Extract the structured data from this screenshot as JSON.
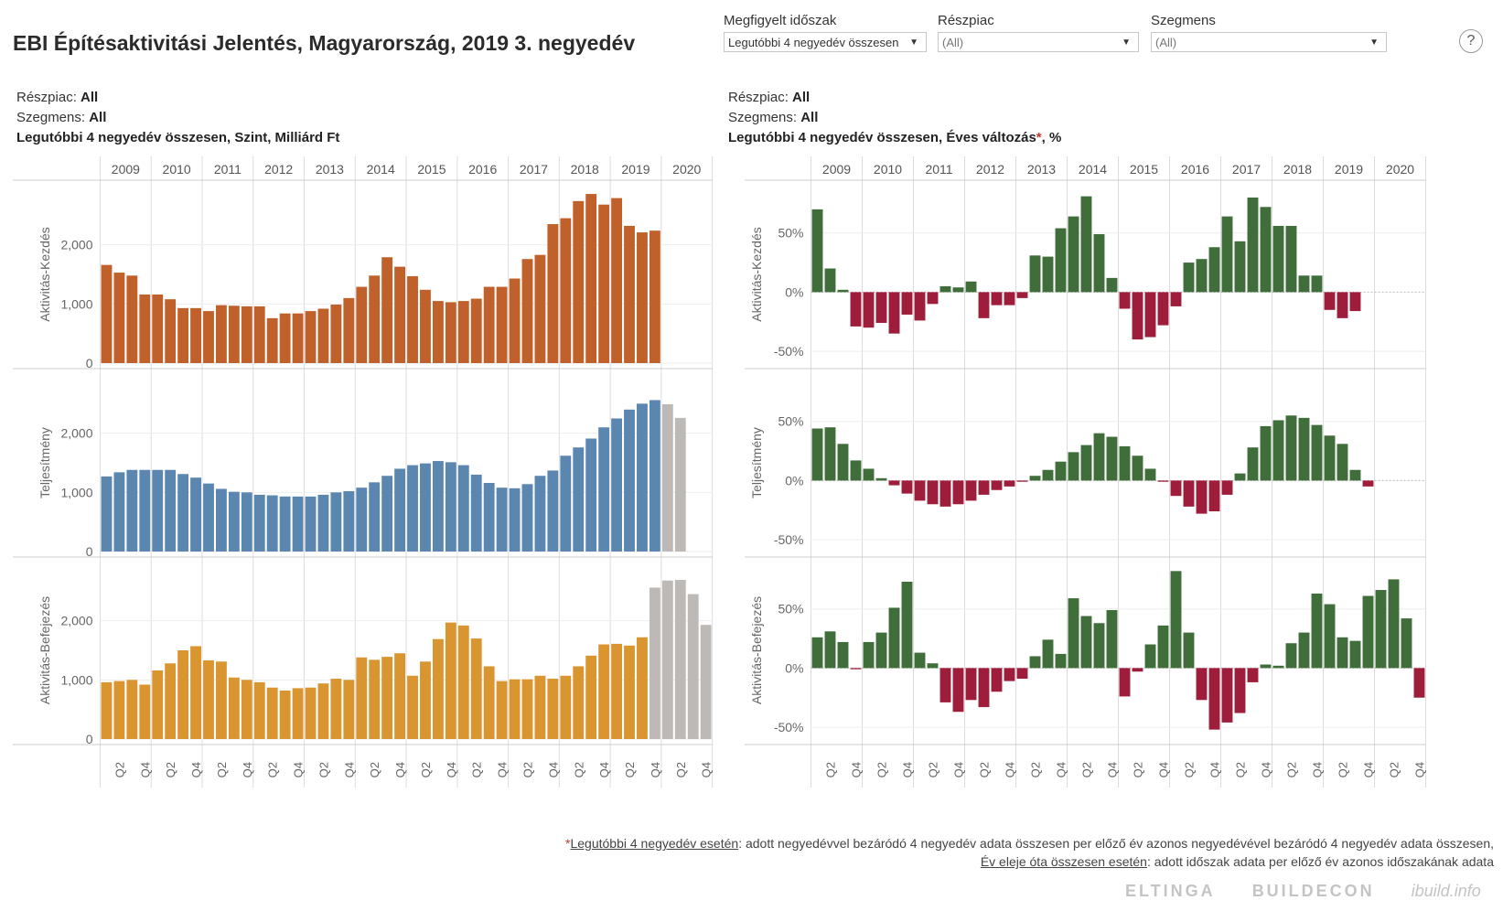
{
  "title": "EBI Építésaktivitási Jelentés, Magyarország, 2019 3. negyedév",
  "filters": [
    {
      "label": "Megfigyelt időszak",
      "value": "Legutóbbi 4 negyedév összesen"
    },
    {
      "label": "Részpiac",
      "value": "(All)"
    },
    {
      "label": "Szegmens",
      "value": "(All)"
    }
  ],
  "help": "?",
  "left_header": {
    "reszpiac_label": "Részpiac:",
    "reszpiac_value": "All",
    "szegmens_label": "Szegmens:",
    "szegmens_value": "All",
    "measure": "Legutóbbi 4 negyedév összesen, Szint, Milliárd Ft"
  },
  "right_header": {
    "reszpiac_label": "Részpiac:",
    "reszpiac_value": "All",
    "szegmens_label": "Szegmens:",
    "szegmens_value": "All",
    "measure_pre": "Legutóbbi 4 negyedév összesen, Éves változás",
    "measure_star": "*",
    "measure_post": ", %"
  },
  "footnote": {
    "star": "*",
    "line1_link": "Legutóbbi 4 negyedév esetén",
    "line1_text": ": adott negyedévvel bezáródó 4 negyedév adata összesen per előző év azonos negyedévével bezáródó 4 negyedév adata összesen,",
    "line2_link": "Év eleje óta összesen esetén",
    "line2_text": ": adott időszak adata per előző év azonos időszakának adata"
  },
  "logos": [
    "ELTINGA",
    "BUILDECON",
    "ibuild.info"
  ],
  "colors": {
    "kezdes": "#c0612b",
    "teljesitmeny": "#5b86b0",
    "befejezes": "#d99530",
    "forecast": "#bdb9b6",
    "positive": "#3f6e3a",
    "negative": "#9e1d3a"
  },
  "chart_data": [
    {
      "type": "bar",
      "title": "Legutóbbi 4 negyedév összesen, Szint, Milliárd Ft",
      "years": [
        "2009",
        "2010",
        "2011",
        "2012",
        "2013",
        "2014",
        "2015",
        "2016",
        "2017",
        "2018",
        "2019",
        "2020"
      ],
      "quarter_ticks": [
        "Q2",
        "Q4"
      ],
      "panels": [
        {
          "name": "Aktivitás-Kezdés",
          "yticks": [
            "0",
            "1,000",
            "2,000"
          ],
          "ylim": [
            0,
            3000
          ],
          "values": [
            1660,
            1530,
            1480,
            1160,
            1160,
            1080,
            930,
            930,
            880,
            980,
            970,
            960,
            960,
            760,
            840,
            840,
            880,
            920,
            990,
            1100,
            1290,
            1480,
            1790,
            1630,
            1470,
            1240,
            1050,
            1030,
            1050,
            1090,
            1290,
            1290,
            1430,
            1760,
            1830,
            2350,
            2450,
            2740,
            2860,
            2680,
            2790,
            2320,
            2210,
            2240,
            null,
            null,
            null,
            null
          ],
          "forecast_values": []
        },
        {
          "name": "Teljesítmény",
          "yticks": [
            "0",
            "1,000",
            "2,000"
          ],
          "ylim": [
            0,
            3000
          ],
          "values": [
            1270,
            1340,
            1380,
            1380,
            1380,
            1380,
            1310,
            1250,
            1150,
            1060,
            1010,
            1000,
            960,
            950,
            930,
            930,
            930,
            960,
            1000,
            1020,
            1080,
            1170,
            1280,
            1400,
            1460,
            1490,
            1530,
            1510,
            1460,
            1300,
            1160,
            1080,
            1070,
            1140,
            1280,
            1370,
            1620,
            1760,
            1910,
            2100,
            2250,
            2400,
            2500,
            2560
          ],
          "forecast_values": [
            2490,
            2260
          ]
        },
        {
          "name": "Aktivitás-Befejezés",
          "yticks": [
            "0",
            "1,000",
            "2,000"
          ],
          "ylim": [
            0,
            3000
          ],
          "values": [
            960,
            980,
            1000,
            920,
            1160,
            1280,
            1500,
            1570,
            1330,
            1310,
            1040,
            1000,
            960,
            870,
            820,
            860,
            870,
            940,
            1020,
            1000,
            1380,
            1340,
            1390,
            1450,
            1070,
            1310,
            1690,
            1970,
            1920,
            1700,
            1230,
            980,
            1010,
            1010,
            1070,
            1020,
            1070,
            1230,
            1410,
            1600,
            1610,
            1580,
            1720
          ],
          "forecast_values": [
            2560,
            2680,
            2690,
            2450,
            1930
          ]
        }
      ]
    },
    {
      "type": "bar",
      "title": "Legutóbbi 4 negyedév összesen, Éves változás*, %",
      "years": [
        "2009",
        "2010",
        "2011",
        "2012",
        "2013",
        "2014",
        "2015",
        "2016",
        "2017",
        "2018",
        "2019",
        "2020"
      ],
      "quarter_ticks": [
        "Q2",
        "Q4"
      ],
      "panels": [
        {
          "name": "Aktivitás-Kezdés",
          "yticks": [
            "-50%",
            "0%",
            "50%"
          ],
          "ylim": [
            -60,
            90
          ],
          "values": [
            70,
            20,
            2,
            -29,
            -30,
            -26,
            -35,
            -19,
            -24,
            -10,
            5,
            4,
            9,
            -22,
            -11,
            -11,
            -5,
            31,
            30,
            54,
            64,
            81,
            49,
            12,
            -14,
            -40,
            -38,
            -28,
            -12,
            25,
            28,
            38,
            64,
            43,
            80,
            72,
            56,
            56,
            14,
            14,
            -15,
            -22,
            -16
          ]
        },
        {
          "name": "Teljesítmény",
          "yticks": [
            "-50%",
            "0%",
            "50%"
          ],
          "ylim": [
            -60,
            90
          ],
          "values": [
            44,
            45,
            31,
            17,
            10,
            2,
            -4,
            -11,
            -17,
            -20,
            -22,
            -20,
            -17,
            -12,
            -8,
            -5,
            -1,
            4,
            9,
            16,
            24,
            30,
            40,
            37,
            29,
            21,
            10,
            -1,
            -13,
            -22,
            -28,
            -26,
            -12,
            6,
            28,
            46,
            51,
            55,
            53,
            47,
            38,
            31,
            9,
            -5
          ]
        },
        {
          "name": "Aktivitás-Befejezés",
          "yticks": [
            "-50%",
            "0%",
            "50%"
          ],
          "ylim": [
            -60,
            90
          ],
          "values": [
            26,
            31,
            22,
            -1,
            22,
            30,
            51,
            73,
            13,
            4,
            -29,
            -37,
            -27,
            -33,
            -20,
            -11,
            -9,
            10,
            24,
            12,
            59,
            44,
            38,
            49,
            -24,
            -3,
            20,
            36,
            82,
            30,
            -27,
            -52,
            -46,
            -38,
            -12,
            3,
            2,
            21,
            30,
            63,
            54,
            26,
            23,
            61,
            66,
            75,
            42,
            -25
          ]
        }
      ]
    }
  ]
}
